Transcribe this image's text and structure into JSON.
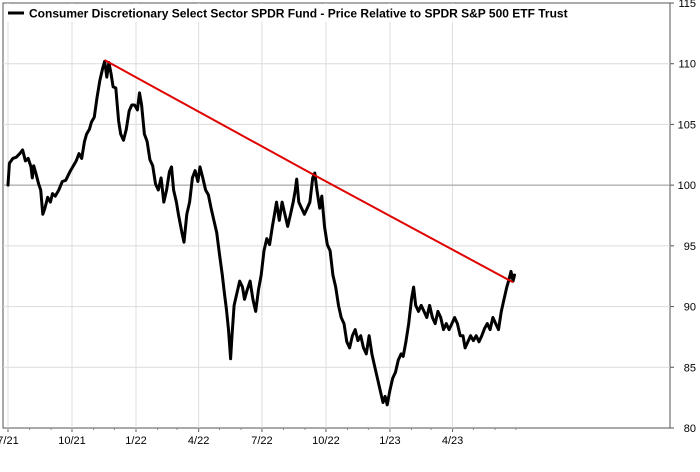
{
  "chart_data": {
    "type": "line",
    "legend": {
      "label": "Consumer Discretionary Select Sector SPDR Fund - Price Relative to SPDR S&P 500 ETF Trust",
      "placement": "top-left",
      "color": "#000000"
    },
    "x_ticks": [
      "7/21",
      "10/21",
      "1/22",
      "4/22",
      "7/22",
      "10/22",
      "1/23",
      "4/23"
    ],
    "y_ticks": [
      80,
      85,
      90,
      95,
      100,
      105,
      110,
      115
    ],
    "ylim": [
      80,
      115
    ],
    "reference_line": 100,
    "grid": true,
    "series": [
      {
        "color": "#000000",
        "points": [
          [
            "2021-07-01",
            100.0
          ],
          [
            "2021-07-03",
            101.8
          ],
          [
            "2021-07-08",
            102.2
          ],
          [
            "2021-07-13",
            102.3
          ],
          [
            "2021-07-18",
            102.6
          ],
          [
            "2021-07-22",
            102.9
          ],
          [
            "2021-07-26",
            102.0
          ],
          [
            "2021-07-30",
            102.2
          ],
          [
            "2021-08-03",
            101.5
          ],
          [
            "2021-08-05",
            100.6
          ],
          [
            "2021-08-07",
            101.6
          ],
          [
            "2021-08-10",
            101.0
          ],
          [
            "2021-08-14",
            100.1
          ],
          [
            "2021-08-17",
            99.6
          ],
          [
            "2021-08-20",
            97.6
          ],
          [
            "2021-08-23",
            98.1
          ],
          [
            "2021-08-27",
            99.0
          ],
          [
            "2021-08-31",
            98.6
          ],
          [
            "2021-09-03",
            99.3
          ],
          [
            "2021-09-07",
            99.1
          ],
          [
            "2021-09-12",
            99.6
          ],
          [
            "2021-09-17",
            100.3
          ],
          [
            "2021-09-22",
            100.4
          ],
          [
            "2021-09-28",
            101.1
          ],
          [
            "2021-10-03",
            101.6
          ],
          [
            "2021-10-07",
            102.0
          ],
          [
            "2021-10-11",
            102.6
          ],
          [
            "2021-10-15",
            102.2
          ],
          [
            "2021-10-19",
            103.6
          ],
          [
            "2021-10-22",
            104.2
          ],
          [
            "2021-10-26",
            104.6
          ],
          [
            "2021-10-29",
            105.2
          ],
          [
            "2021-11-02",
            105.6
          ],
          [
            "2021-11-06",
            107.2
          ],
          [
            "2021-11-10",
            108.6
          ],
          [
            "2021-11-14",
            109.6
          ],
          [
            "2021-11-17",
            110.2
          ],
          [
            "2021-11-20",
            108.9
          ],
          [
            "2021-11-23",
            110.1
          ],
          [
            "2021-11-26",
            109.2
          ],
          [
            "2021-11-29",
            108.1
          ],
          [
            "2021-12-03",
            108.0
          ],
          [
            "2021-12-07",
            105.3
          ],
          [
            "2021-12-10",
            104.2
          ],
          [
            "2021-12-14",
            103.7
          ],
          [
            "2021-12-18",
            104.6
          ],
          [
            "2021-12-22",
            106.1
          ],
          [
            "2021-12-26",
            106.6
          ],
          [
            "2021-12-30",
            106.6
          ],
          [
            "2022-01-03",
            106.2
          ],
          [
            "2022-01-06",
            107.6
          ],
          [
            "2022-01-09",
            106.6
          ],
          [
            "2022-01-13",
            104.2
          ],
          [
            "2022-01-17",
            103.6
          ],
          [
            "2022-01-21",
            102.1
          ],
          [
            "2022-01-25",
            101.6
          ],
          [
            "2022-01-29",
            100.1
          ],
          [
            "2022-02-02",
            99.6
          ],
          [
            "2022-02-06",
            100.6
          ],
          [
            "2022-02-10",
            98.6
          ],
          [
            "2022-02-14",
            99.6
          ],
          [
            "2022-02-18",
            101.1
          ],
          [
            "2022-02-21",
            101.5
          ],
          [
            "2022-02-24",
            99.6
          ],
          [
            "2022-02-28",
            98.6
          ],
          [
            "2022-03-03",
            97.6
          ],
          [
            "2022-03-08",
            96.1
          ],
          [
            "2022-03-11",
            95.3
          ],
          [
            "2022-03-15",
            97.6
          ],
          [
            "2022-03-19",
            98.6
          ],
          [
            "2022-03-23",
            100.6
          ],
          [
            "2022-03-27",
            101.2
          ],
          [
            "2022-03-31",
            100.3
          ],
          [
            "2022-04-03",
            101.5
          ],
          [
            "2022-04-07",
            100.6
          ],
          [
            "2022-04-11",
            99.6
          ],
          [
            "2022-04-15",
            99.2
          ],
          [
            "2022-04-19",
            98.1
          ],
          [
            "2022-04-23",
            97.1
          ],
          [
            "2022-04-27",
            96.1
          ],
          [
            "2022-05-01",
            94.3
          ],
          [
            "2022-05-05",
            92.6
          ],
          [
            "2022-05-08",
            91.1
          ],
          [
            "2022-05-11",
            89.8
          ],
          [
            "2022-05-14",
            88.1
          ],
          [
            "2022-05-17",
            85.7
          ],
          [
            "2022-05-19",
            87.6
          ],
          [
            "2022-05-22",
            90.1
          ],
          [
            "2022-05-26",
            91.1
          ],
          [
            "2022-05-30",
            92.1
          ],
          [
            "2022-06-03",
            91.6
          ],
          [
            "2022-06-06",
            90.6
          ],
          [
            "2022-06-10",
            91.4
          ],
          [
            "2022-06-14",
            92.1
          ],
          [
            "2022-06-18",
            90.6
          ],
          [
            "2022-06-22",
            89.6
          ],
          [
            "2022-06-26",
            91.4
          ],
          [
            "2022-06-30",
            92.6
          ],
          [
            "2022-07-04",
            94.6
          ],
          [
            "2022-07-08",
            95.6
          ],
          [
            "2022-07-12",
            95.1
          ],
          [
            "2022-07-16",
            96.6
          ],
          [
            "2022-07-19",
            97.6
          ],
          [
            "2022-07-22",
            98.6
          ],
          [
            "2022-07-26",
            97.1
          ],
          [
            "2022-07-30",
            98.6
          ],
          [
            "2022-08-03",
            97.6
          ],
          [
            "2022-08-07",
            96.6
          ],
          [
            "2022-08-11",
            97.6
          ],
          [
            "2022-08-15",
            98.6
          ],
          [
            "2022-08-18",
            99.6
          ],
          [
            "2022-08-20",
            100.5
          ],
          [
            "2022-08-23",
            98.6
          ],
          [
            "2022-08-27",
            98.1
          ],
          [
            "2022-08-31",
            97.6
          ],
          [
            "2022-09-04",
            98.1
          ],
          [
            "2022-09-08",
            98.6
          ],
          [
            "2022-09-12",
            100.6
          ],
          [
            "2022-09-15",
            101.0
          ],
          [
            "2022-09-18",
            99.6
          ],
          [
            "2022-09-22",
            98.1
          ],
          [
            "2022-09-25",
            99.1
          ],
          [
            "2022-09-29",
            96.6
          ],
          [
            "2022-10-03",
            95.1
          ],
          [
            "2022-10-07",
            94.6
          ],
          [
            "2022-10-11",
            92.6
          ],
          [
            "2022-10-15",
            91.6
          ],
          [
            "2022-10-19",
            90.1
          ],
          [
            "2022-10-23",
            89.1
          ],
          [
            "2022-10-27",
            88.6
          ],
          [
            "2022-10-31",
            87.1
          ],
          [
            "2022-11-04",
            86.6
          ],
          [
            "2022-11-08",
            87.6
          ],
          [
            "2022-11-12",
            88.1
          ],
          [
            "2022-11-16",
            87.2
          ],
          [
            "2022-11-20",
            87.6
          ],
          [
            "2022-11-24",
            86.6
          ],
          [
            "2022-11-28",
            86.1
          ],
          [
            "2022-12-02",
            87.6
          ],
          [
            "2022-12-06",
            86.1
          ],
          [
            "2022-12-10",
            85.1
          ],
          [
            "2022-12-14",
            84.1
          ],
          [
            "2022-12-18",
            83.1
          ],
          [
            "2022-12-22",
            82.1
          ],
          [
            "2022-12-25",
            82.6
          ],
          [
            "2022-12-28",
            81.9
          ],
          [
            "2023-01-01",
            83.1
          ],
          [
            "2023-01-05",
            84.1
          ],
          [
            "2023-01-09",
            84.6
          ],
          [
            "2023-01-13",
            85.6
          ],
          [
            "2023-01-17",
            86.1
          ],
          [
            "2023-01-20",
            85.9
          ],
          [
            "2023-01-24",
            87.1
          ],
          [
            "2023-01-28",
            88.6
          ],
          [
            "2023-02-01",
            90.6
          ],
          [
            "2023-02-04",
            91.6
          ],
          [
            "2023-02-07",
            90.1
          ],
          [
            "2023-02-11",
            89.6
          ],
          [
            "2023-02-15",
            90.1
          ],
          [
            "2023-02-19",
            89.6
          ],
          [
            "2023-02-23",
            89.1
          ],
          [
            "2023-02-27",
            90.1
          ],
          [
            "2023-03-03",
            89.1
          ],
          [
            "2023-03-07",
            88.6
          ],
          [
            "2023-03-11",
            89.6
          ],
          [
            "2023-03-15",
            89.1
          ],
          [
            "2023-03-19",
            88.1
          ],
          [
            "2023-03-23",
            88.6
          ],
          [
            "2023-03-27",
            88.1
          ],
          [
            "2023-03-31",
            88.6
          ],
          [
            "2023-04-04",
            89.1
          ],
          [
            "2023-04-08",
            88.6
          ],
          [
            "2023-04-12",
            87.6
          ],
          [
            "2023-04-16",
            87.6
          ],
          [
            "2023-04-19",
            86.6
          ],
          [
            "2023-04-23",
            87.1
          ],
          [
            "2023-04-27",
            87.6
          ],
          [
            "2023-05-01",
            87.2
          ],
          [
            "2023-05-05",
            87.6
          ],
          [
            "2023-05-09",
            87.1
          ],
          [
            "2023-05-13",
            87.6
          ],
          [
            "2023-05-17",
            88.2
          ],
          [
            "2023-05-21",
            88.6
          ],
          [
            "2023-05-25",
            88.1
          ],
          [
            "2023-05-29",
            89.1
          ],
          [
            "2023-06-02",
            88.6
          ],
          [
            "2023-06-06",
            88.1
          ],
          [
            "2023-06-10",
            89.6
          ],
          [
            "2023-06-14",
            90.6
          ],
          [
            "2023-06-18",
            91.6
          ],
          [
            "2023-06-21",
            92.2
          ],
          [
            "2023-06-24",
            92.9
          ],
          [
            "2023-06-27",
            92.1
          ],
          [
            "2023-06-29",
            92.6
          ]
        ]
      }
    ],
    "trendline": {
      "color": "#e00000",
      "points": [
        [
          "2021-11-17",
          110.3
        ],
        [
          "2022-09-15",
          100.8
        ],
        [
          "2023-06-27",
          92.0
        ]
      ]
    }
  }
}
